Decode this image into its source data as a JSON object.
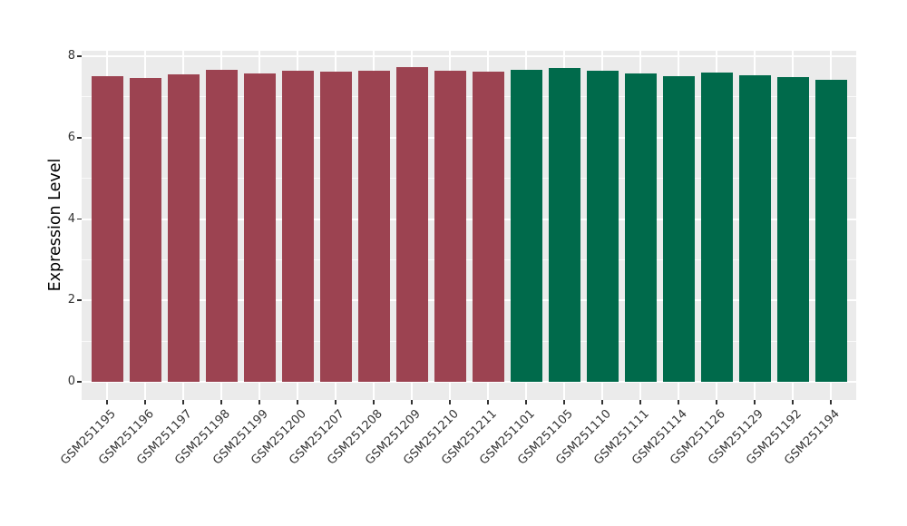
{
  "chart_data": {
    "type": "bar",
    "title": "",
    "xlabel": "",
    "ylabel": "Expression Level",
    "ylim": [
      0,
      8
    ],
    "yticks": [
      0,
      2,
      4,
      6,
      8
    ],
    "x_tick_rotation_deg": 45,
    "legend_position": "none",
    "grid": "gray panel with white major gridlines at even values, white minor gridlines at odd values, vertical white gridline at each bar center",
    "categories": [
      "GSM251195",
      "GSM251196",
      "GSM251197",
      "GSM251198",
      "GSM251199",
      "GSM251200",
      "GSM251207",
      "GSM251208",
      "GSM251209",
      "GSM251210",
      "GSM251211",
      "GSM251101",
      "GSM251105",
      "GSM251110",
      "GSM251111",
      "GSM251114",
      "GSM251126",
      "GSM251129",
      "GSM251192",
      "GSM251194"
    ],
    "values": [
      7.5,
      7.47,
      7.56,
      7.66,
      7.57,
      7.64,
      7.62,
      7.65,
      7.74,
      7.65,
      7.63,
      7.67,
      7.71,
      7.65,
      7.58,
      7.52,
      7.6,
      7.53,
      7.48,
      7.42
    ],
    "bar_colors": [
      "#9C4351",
      "#9C4351",
      "#9C4351",
      "#9C4351",
      "#9C4351",
      "#9C4351",
      "#9C4351",
      "#9C4351",
      "#9C4351",
      "#9C4351",
      "#9C4351",
      "#006A4B",
      "#006A4B",
      "#006A4B",
      "#006A4B",
      "#006A4B",
      "#006A4B",
      "#006A4B",
      "#006A4B",
      "#006A4B"
    ],
    "colors": {
      "red_group": "#9C4351",
      "green_group": "#006A4B",
      "panel_bg": "#EBEBEB",
      "grid_major": "#FFFFFF",
      "grid_minor": "rgba(255,255,255,0.75)",
      "tick_mark": "#333333",
      "tick_text": "#333333",
      "axis_title_text": "#000000",
      "figure_bg": "#FFFFFF"
    }
  }
}
